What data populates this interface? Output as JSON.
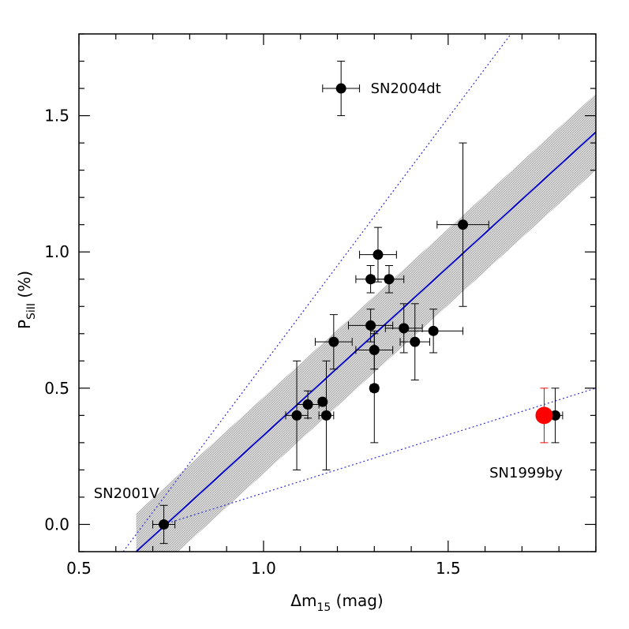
{
  "chart_data": {
    "type": "scatter",
    "xlabel": {
      "main": "Δm",
      "sub": "15",
      "unit": " (mag)"
    },
    "ylabel": {
      "main": "P",
      "sub": "SiII",
      "unit": " (%)"
    },
    "xlim": [
      0.5,
      1.9
    ],
    "ylim": [
      -0.1,
      1.8
    ],
    "xticks": [
      0.5,
      1.0,
      1.5
    ],
    "xtick_labels": [
      "0.5",
      "1.0",
      "1.5"
    ],
    "yticks": [
      0.0,
      0.5,
      1.0,
      1.5
    ],
    "ytick_labels": [
      "0.0",
      "0.5",
      "1.0",
      "1.5"
    ],
    "grid": false,
    "points": [
      {
        "x": 0.73,
        "y": 0.0,
        "xerr": 0.03,
        "yerr": 0.07
      },
      {
        "x": 1.09,
        "y": 0.4,
        "xerr": 0.03,
        "yerr": 0.2
      },
      {
        "x": 1.12,
        "y": 0.44,
        "xerr": 0.03,
        "yerr": 0.05
      },
      {
        "x": 1.16,
        "y": 0.45,
        "xerr": 0.01,
        "yerr": 0.01
      },
      {
        "x": 1.17,
        "y": 0.4,
        "xerr": 0.02,
        "yerr": 0.2
      },
      {
        "x": 1.19,
        "y": 0.67,
        "xerr": 0.05,
        "yerr": 0.1
      },
      {
        "x": 1.29,
        "y": 0.73,
        "xerr": 0.06,
        "yerr": 0.06
      },
      {
        "x": 1.29,
        "y": 0.9,
        "xerr": 0.04,
        "yerr": 0.05
      },
      {
        "x": 1.3,
        "y": 0.64,
        "xerr": 0.05,
        "yerr": 0.07
      },
      {
        "x": 1.3,
        "y": 0.5,
        "xerr": 0.01,
        "yerr": 0.2
      },
      {
        "x": 1.31,
        "y": 0.99,
        "xerr": 0.05,
        "yerr": 0.1
      },
      {
        "x": 1.34,
        "y": 0.9,
        "xerr": 0.04,
        "yerr": 0.05
      },
      {
        "x": 1.38,
        "y": 0.72,
        "xerr": 0.05,
        "yerr": 0.09
      },
      {
        "x": 1.41,
        "y": 0.67,
        "xerr": 0.04,
        "yerr": 0.14
      },
      {
        "x": 1.46,
        "y": 0.71,
        "xerr": 0.08,
        "yerr": 0.08
      },
      {
        "x": 1.54,
        "y": 1.1,
        "xerr": 0.07,
        "yerr": 0.3
      },
      {
        "x": 1.21,
        "y": 1.6,
        "xerr": 0.05,
        "yerr": 0.1
      },
      {
        "x": 1.79,
        "y": 0.4,
        "xerr": 0.02,
        "yerr": 0.1
      }
    ],
    "highlight_point": {
      "x": 1.76,
      "y": 0.4,
      "yerr": 0.1,
      "color": "#ff0000"
    },
    "fit_line": {
      "x": [
        0.655,
        1.9
      ],
      "y": [
        -0.1,
        1.44
      ],
      "color": "#0000cc"
    },
    "fit_band": {
      "half_width": 0.14,
      "color": "#bbbbbb"
    },
    "dotted_lines": [
      {
        "x": [
          0.62,
          1.67
        ],
        "y": [
          -0.1,
          1.8
        ],
        "color": "#3333cc"
      },
      {
        "x": [
          0.73,
          1.9
        ],
        "y": [
          0.0,
          0.5
        ],
        "color": "#3333cc"
      }
    ],
    "annotations": [
      {
        "text": "SN2004dt",
        "x": 1.29,
        "y": 1.6,
        "anchor": "start"
      },
      {
        "text": "SN1999by",
        "x": 1.81,
        "y": 0.19,
        "anchor": "end"
      },
      {
        "text": "SN2001V",
        "x": 0.54,
        "y": 0.115,
        "anchor": "start"
      }
    ]
  }
}
